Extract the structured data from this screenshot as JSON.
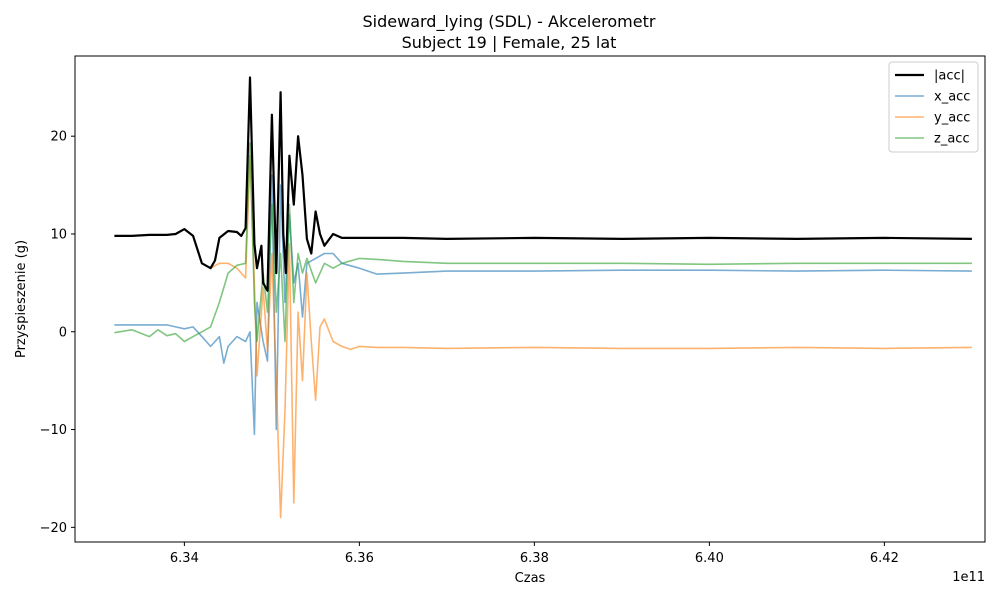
{
  "chart_data": {
    "type": "line",
    "title": "Sideward_lying (SDL) - Akcelerometr",
    "subtitle": "Subject 19 | Female, 25 lat",
    "xlabel": "Czas",
    "ylabel": "Przyspieszenie (g)",
    "x_offset_label": "1e11",
    "xlim": [
      6.3275,
      6.4315
    ],
    "ylim": [
      -21.5,
      28.2
    ],
    "x_ticks": [
      6.34,
      6.36,
      6.38,
      6.4,
      6.42
    ],
    "x_tick_labels": [
      "6.34",
      "6.36",
      "6.38",
      "6.40",
      "6.42"
    ],
    "y_ticks": [
      -20,
      -10,
      0,
      10,
      20
    ],
    "y_tick_labels": [
      "−20",
      "−10",
      "0",
      "10",
      "20"
    ],
    "grid": false,
    "legend_position": "top-right",
    "series": [
      {
        "name": "|acc|",
        "color": "#000000",
        "x": [
          6.332,
          6.334,
          6.336,
          6.338,
          6.339,
          6.34,
          6.341,
          6.342,
          6.343,
          6.3435,
          6.344,
          6.345,
          6.346,
          6.3465,
          6.347,
          6.3475,
          6.348,
          6.3483,
          6.3488,
          6.349,
          6.3495,
          6.35,
          6.3505,
          6.3508,
          6.351,
          6.3513,
          6.3516,
          6.352,
          6.3525,
          6.353,
          6.3535,
          6.354,
          6.3545,
          6.355,
          6.3555,
          6.356,
          6.357,
          6.358,
          6.36,
          6.365,
          6.37,
          6.38,
          6.39,
          6.4,
          6.41,
          6.42,
          6.43
        ],
        "y": [
          9.8,
          9.8,
          9.9,
          9.9,
          10.0,
          10.5,
          9.8,
          7.0,
          6.5,
          7.3,
          9.6,
          10.3,
          10.2,
          9.8,
          10.6,
          26.0,
          9.0,
          6.5,
          8.8,
          5.0,
          4.2,
          22.2,
          6.0,
          17.0,
          24.5,
          10.0,
          6.0,
          18.0,
          13.0,
          20.0,
          16.0,
          9.5,
          8.0,
          12.3,
          10.0,
          8.8,
          10.0,
          9.6,
          9.6,
          9.6,
          9.5,
          9.6,
          9.5,
          9.6,
          9.5,
          9.6,
          9.5
        ]
      },
      {
        "name": "x_acc",
        "color": "#1f77b4",
        "x": [
          6.332,
          6.334,
          6.336,
          6.338,
          6.339,
          6.34,
          6.341,
          6.342,
          6.343,
          6.344,
          6.3445,
          6.345,
          6.346,
          6.347,
          6.3475,
          6.348,
          6.3483,
          6.349,
          6.3495,
          6.35,
          6.3505,
          6.351,
          6.3515,
          6.352,
          6.3525,
          6.353,
          6.3535,
          6.354,
          6.355,
          6.356,
          6.357,
          6.358,
          6.36,
          6.362,
          6.365,
          6.37,
          6.38,
          6.39,
          6.4,
          6.41,
          6.42,
          6.43
        ],
        "y": [
          0.7,
          0.7,
          0.7,
          0.7,
          0.5,
          0.3,
          0.5,
          -0.5,
          -1.5,
          -0.5,
          -3.2,
          -1.5,
          -0.5,
          -1.0,
          0.0,
          -10.5,
          3.0,
          -1.0,
          -3.0,
          16.0,
          -10.0,
          15.0,
          3.0,
          12.0,
          5.0,
          7.0,
          1.5,
          7.0,
          7.5,
          8.0,
          8.0,
          7.0,
          6.5,
          5.9,
          6.0,
          6.2,
          6.2,
          6.3,
          6.3,
          6.2,
          6.3,
          6.2
        ]
      },
      {
        "name": "y_acc",
        "color": "#ff7f0e",
        "x": [
          6.332,
          6.334,
          6.336,
          6.338,
          6.339,
          6.34,
          6.341,
          6.342,
          6.343,
          6.344,
          6.345,
          6.346,
          6.347,
          6.3475,
          6.348,
          6.3483,
          6.349,
          6.3495,
          6.35,
          6.3505,
          6.351,
          6.3515,
          6.352,
          6.3525,
          6.353,
          6.3535,
          6.354,
          6.3545,
          6.355,
          6.3555,
          6.356,
          6.357,
          6.358,
          6.359,
          6.36,
          6.362,
          6.365,
          6.37,
          6.38,
          6.39,
          6.4,
          6.41,
          6.42,
          6.43
        ],
        "y": [
          9.8,
          9.8,
          9.9,
          9.9,
          10.0,
          10.5,
          9.8,
          7.0,
          6.5,
          7.0,
          7.0,
          6.5,
          5.5,
          18.0,
          5.0,
          -4.5,
          4.5,
          -2.0,
          8.0,
          -5.0,
          -19.0,
          -8.0,
          9.0,
          -17.5,
          2.0,
          -5.0,
          6.0,
          -1.0,
          -7.0,
          0.5,
          1.3,
          -1.0,
          -1.5,
          -1.8,
          -1.5,
          -1.6,
          -1.6,
          -1.7,
          -1.6,
          -1.7,
          -1.7,
          -1.6,
          -1.7,
          -1.6
        ]
      },
      {
        "name": "z_acc",
        "color": "#2ca02c",
        "x": [
          6.332,
          6.334,
          6.336,
          6.337,
          6.338,
          6.339,
          6.34,
          6.341,
          6.342,
          6.343,
          6.344,
          6.345,
          6.346,
          6.347,
          6.3475,
          6.348,
          6.3483,
          6.349,
          6.3495,
          6.35,
          6.3505,
          6.351,
          6.3515,
          6.352,
          6.3525,
          6.353,
          6.3535,
          6.354,
          6.355,
          6.356,
          6.357,
          6.358,
          6.36,
          6.362,
          6.365,
          6.37,
          6.38,
          6.39,
          6.4,
          6.41,
          6.42,
          6.43
        ],
        "y": [
          -0.1,
          0.2,
          -0.5,
          0.2,
          -0.4,
          -0.2,
          -1.0,
          -0.5,
          0.0,
          0.5,
          3.0,
          6.0,
          6.8,
          7.0,
          19.3,
          3.0,
          -1.0,
          6.0,
          2.0,
          13.0,
          2.0,
          8.0,
          -1.0,
          13.0,
          3.0,
          8.0,
          6.0,
          7.5,
          5.0,
          7.0,
          6.5,
          7.0,
          7.5,
          7.4,
          7.2,
          7.0,
          7.0,
          7.0,
          6.9,
          7.0,
          7.0,
          7.0
        ]
      }
    ]
  }
}
